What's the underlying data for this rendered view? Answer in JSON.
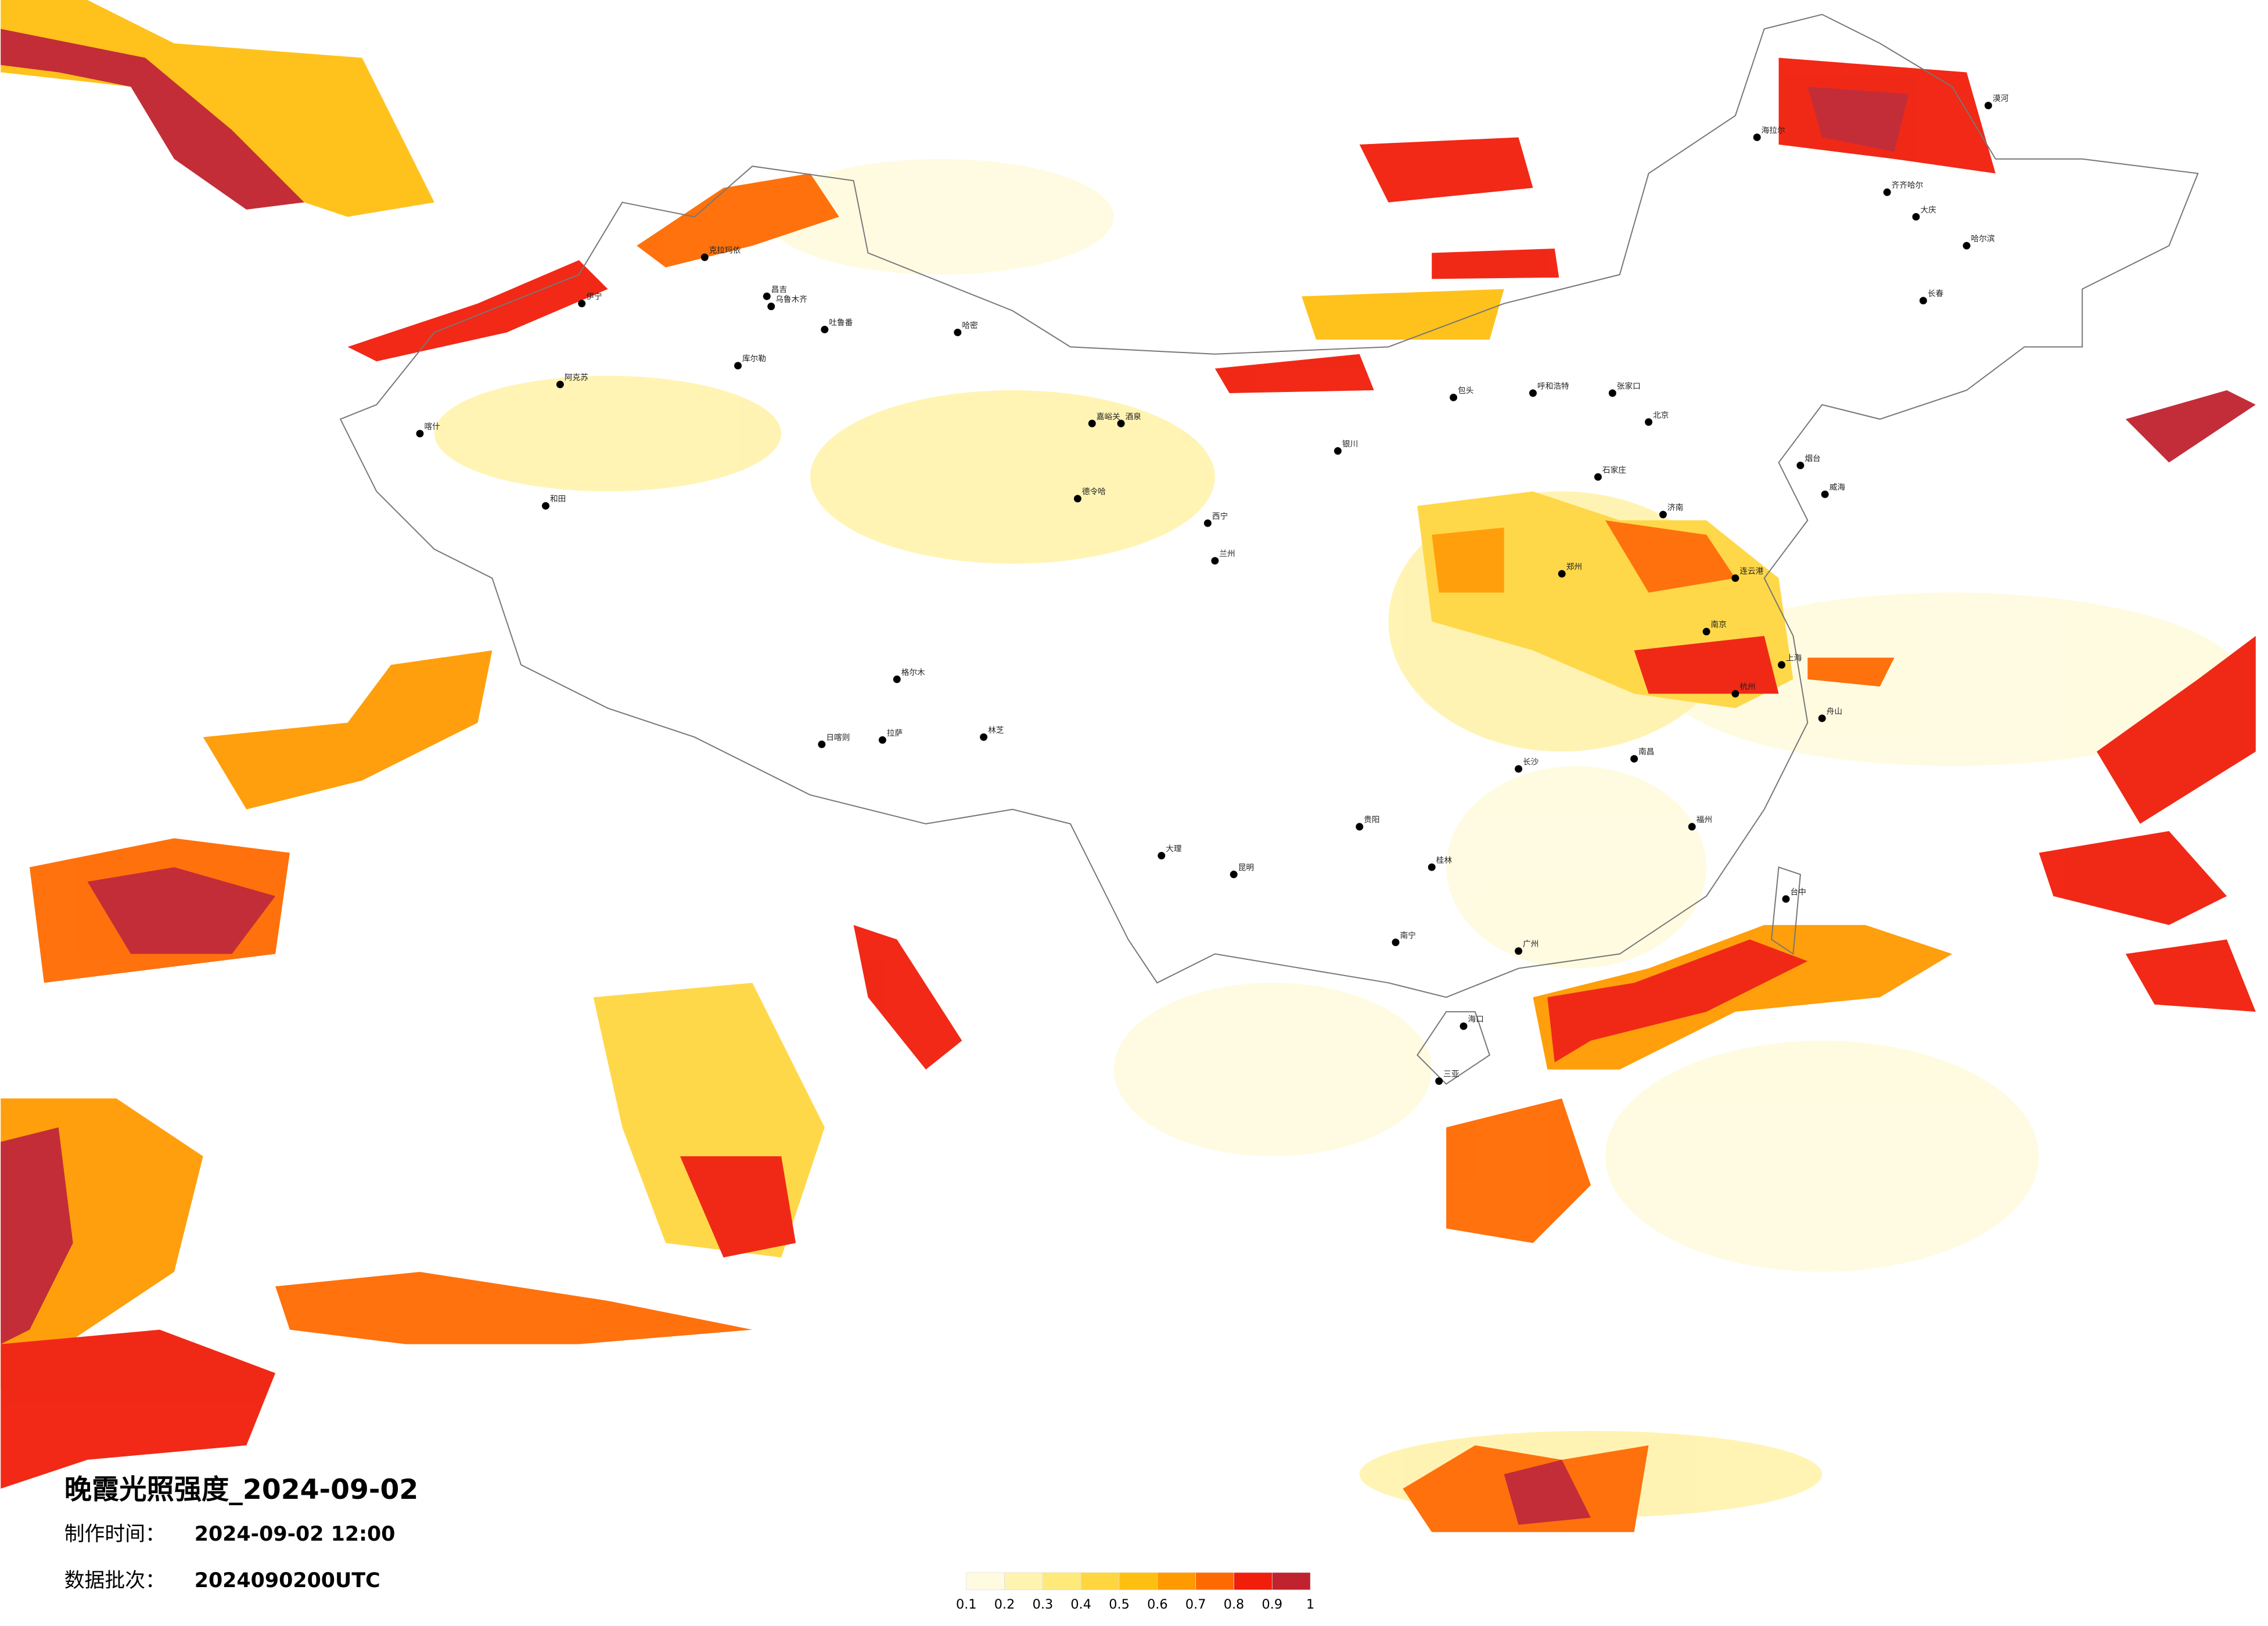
{
  "header": {
    "title": "晚霞光照强度_2024-09-02",
    "made": {
      "label": "制作时间：",
      "value": "2024-09-02 12:00"
    },
    "batch": {
      "label": "数据批次：",
      "value": "2024090200UTC"
    }
  },
  "legend": {
    "colors": [
      "#fffbe0",
      "#fff3b0",
      "#ffe97a",
      "#ffd640",
      "#ffbf10",
      "#ff9a00",
      "#ff6a00",
      "#f01e0a",
      "#c0222e"
    ],
    "ticks": [
      0.1,
      0.2,
      0.3,
      0.4,
      0.5,
      0.6,
      0.7,
      0.8,
      0.9,
      1
    ]
  },
  "cities": [
    "克拉玛依",
    "伊宁",
    "昌吉",
    "乌鲁木齐",
    "吐鲁番",
    "哈密",
    "库尔勒",
    "阿克苏",
    "喀什",
    "和田",
    "嘉峪关",
    "酒泉",
    "德令哈",
    "格尔木",
    "日喀则",
    "拉萨",
    "林芝",
    "海拉尔",
    "漠河",
    "齐齐哈尔",
    "大庆",
    "哈尔滨",
    "长春",
    "呼和浩特",
    "包头",
    "张家口",
    "北京",
    "石家庄",
    "济南",
    "连云港",
    "烟台",
    "威海",
    "西宁",
    "兰州",
    "银川",
    "郑州",
    "南京",
    "上海",
    "舟山",
    "杭州",
    "南昌",
    "长沙",
    "贵阳",
    "昆明",
    "大理",
    "桂林",
    "南宁",
    "海口",
    "三亚",
    "台中",
    "福州",
    "广州"
  ]
}
